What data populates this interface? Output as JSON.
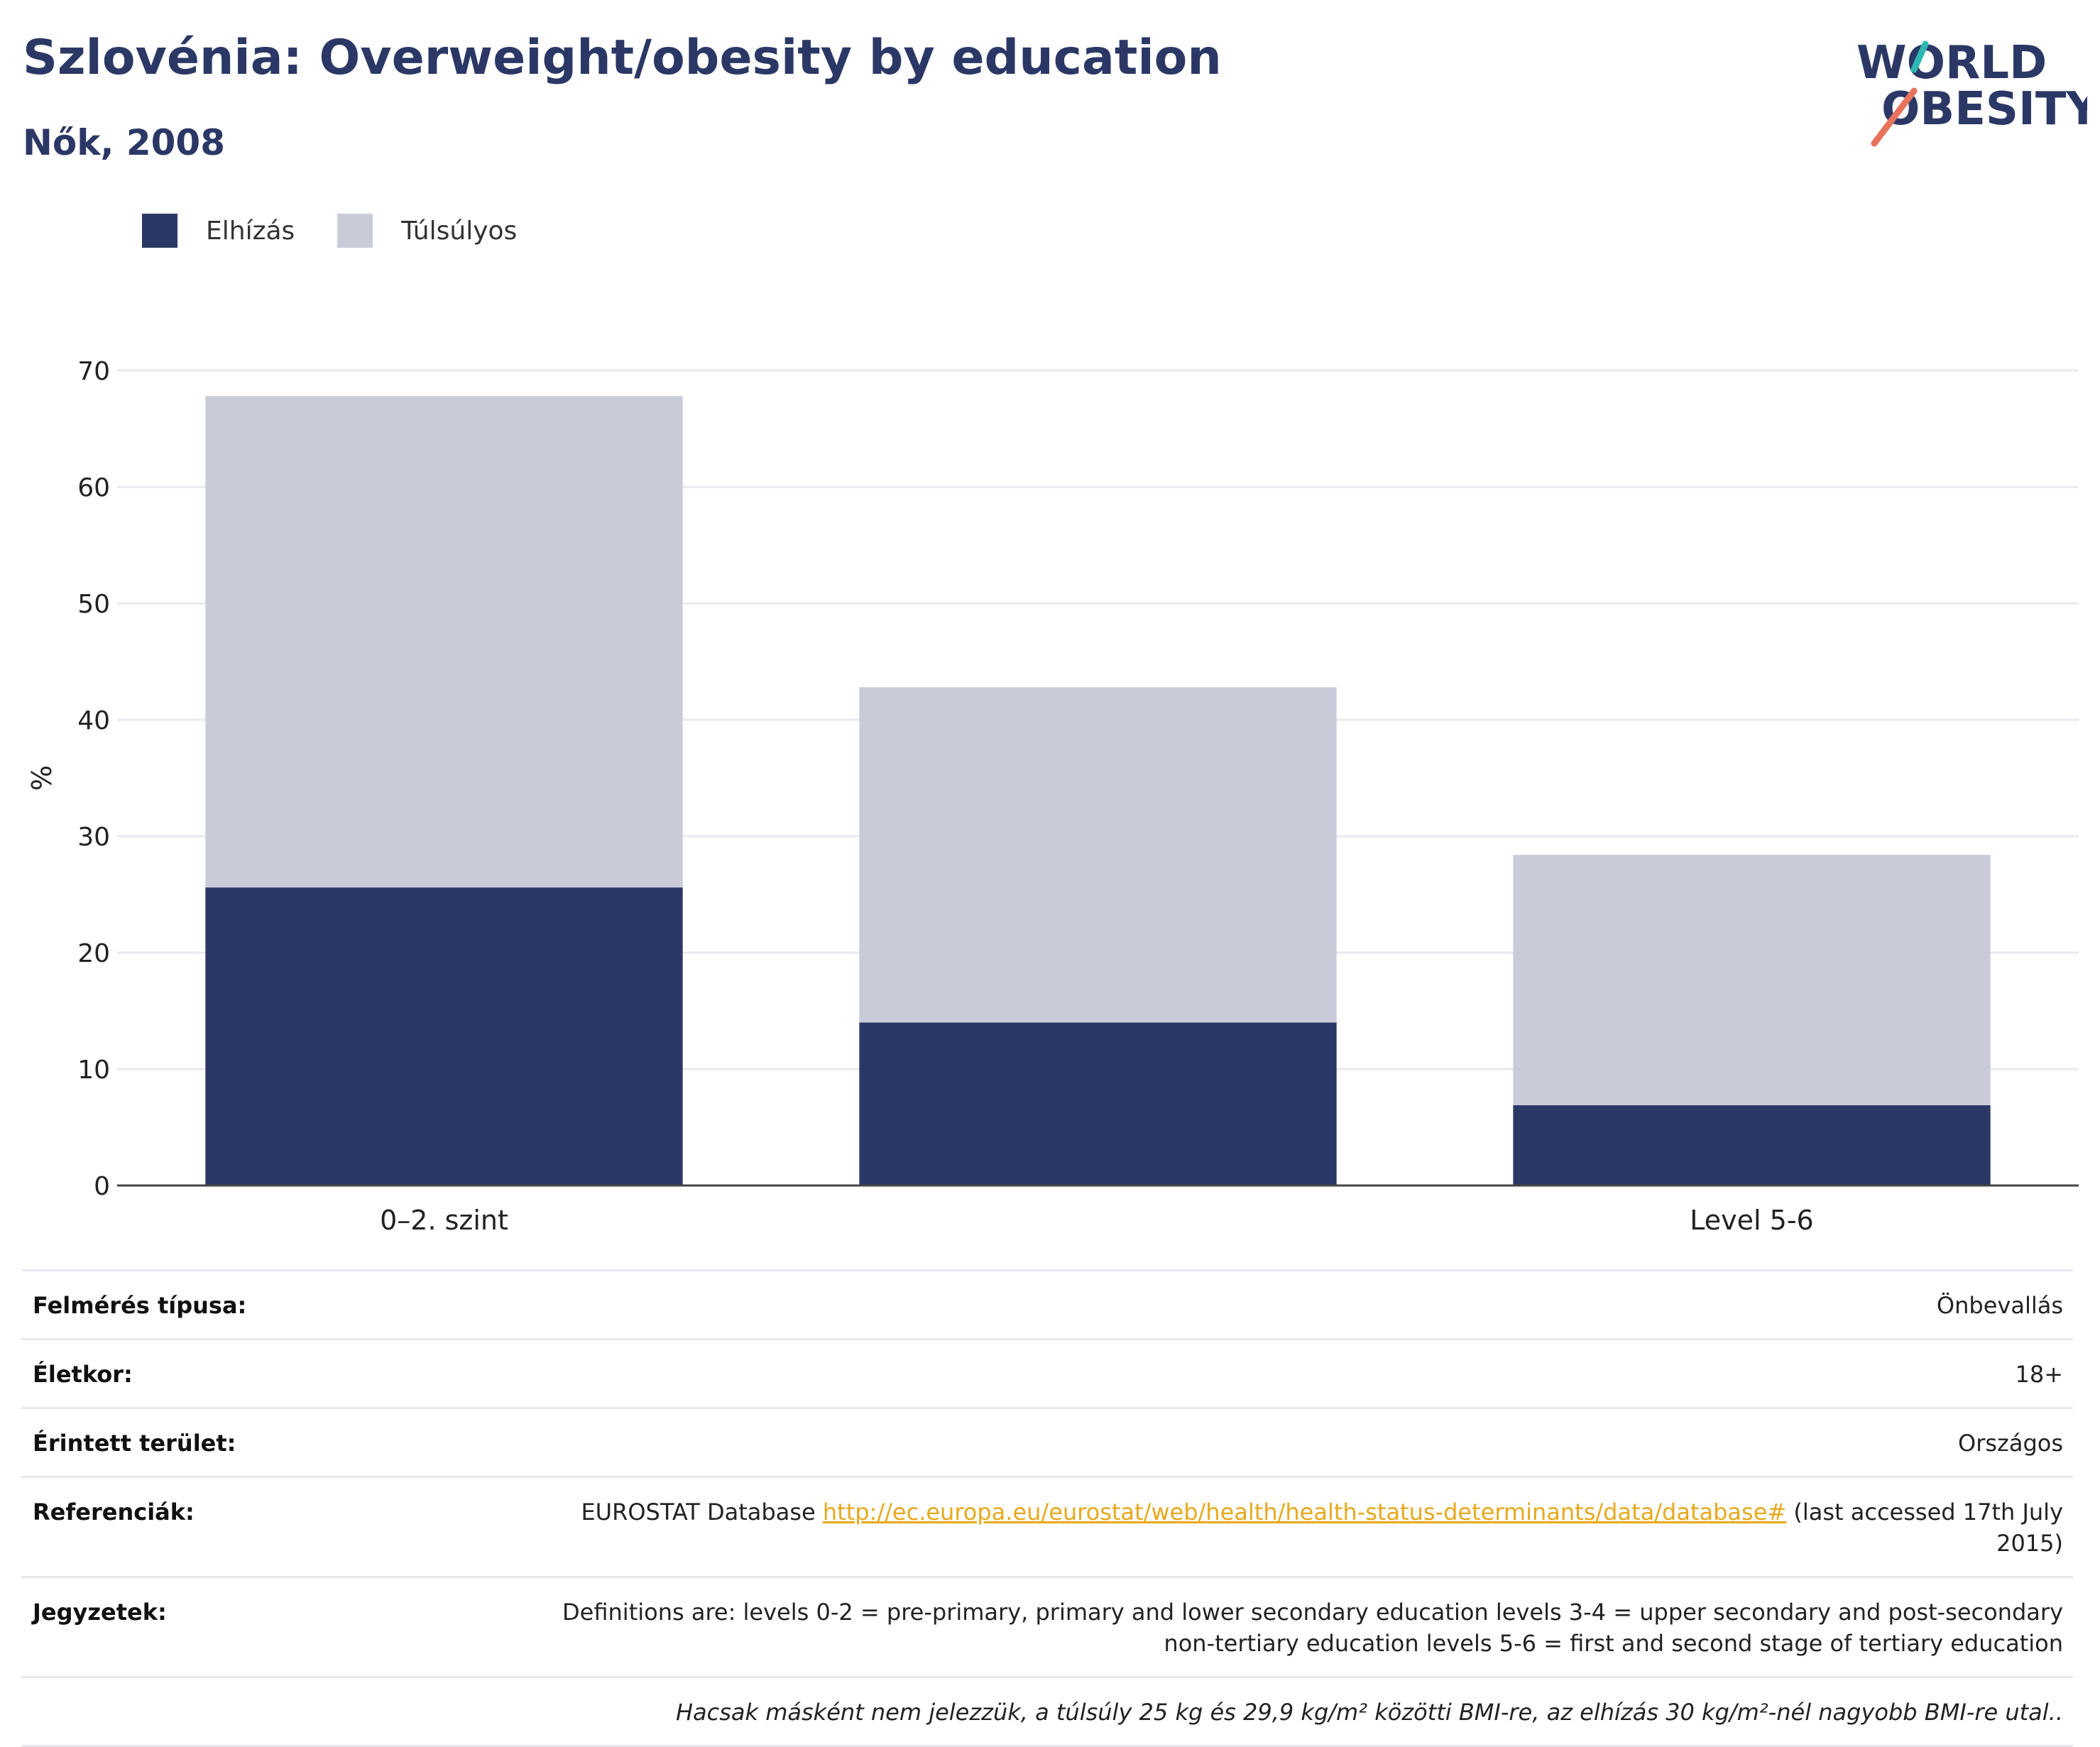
{
  "header": {
    "title": "Szlovénia: Overweight/obesity by education",
    "subtitle": "Nők, 2008"
  },
  "logo": {
    "line1": "WORLD",
    "line2": "OBESITY"
  },
  "colors": {
    "obesity": "#2b3866",
    "overweight": "#c9ccd8",
    "title": "#2b3866",
    "link": "#e7a91d"
  },
  "chart_data": {
    "type": "bar",
    "stacked": true,
    "categories": [
      "0–2. szint",
      "",
      "Level 5-6"
    ],
    "series": [
      {
        "name": "Elhízás",
        "values": [
          25.6,
          14.0,
          6.9
        ]
      },
      {
        "name": "Túlsúlyos",
        "values": [
          42.2,
          28.8,
          21.5
        ]
      }
    ],
    "ylabel": "%",
    "xlabel": "",
    "ylim": [
      0,
      70
    ],
    "yticks": [
      0,
      10,
      20,
      30,
      40,
      50,
      60,
      70
    ],
    "grid": true,
    "legend": "top-left"
  },
  "meta": {
    "survey_label": "Felmérés típusa:",
    "survey_value": "Önbevallás",
    "age_label": "Életkor:",
    "age_value": "18+",
    "area_label": "Érintett terület:",
    "area_value": "Országos",
    "ref_label": "Referenciák:",
    "ref_prefix": "EUROSTAT Database ",
    "ref_link": "http://ec.europa.eu/eurostat/web/health/health-status-determinants/data/database#",
    "ref_suffix": " (last accessed 17th July 2015)",
    "notes_label": "Jegyzetek:",
    "notes_value": "Definitions are: levels 0-2 = pre-primary, primary and lower secondary education levels 3-4 = upper secondary and post-secondary non-tertiary education levels 5-6 = first and second stage of tertiary education",
    "footnote": "Hacsak másként nem jelezzük, a túlsúly 25 kg és 29,9 kg/m² közötti BMI-re, az elhízás 30 kg/m²-nél nagyobb BMI-re utal.."
  }
}
